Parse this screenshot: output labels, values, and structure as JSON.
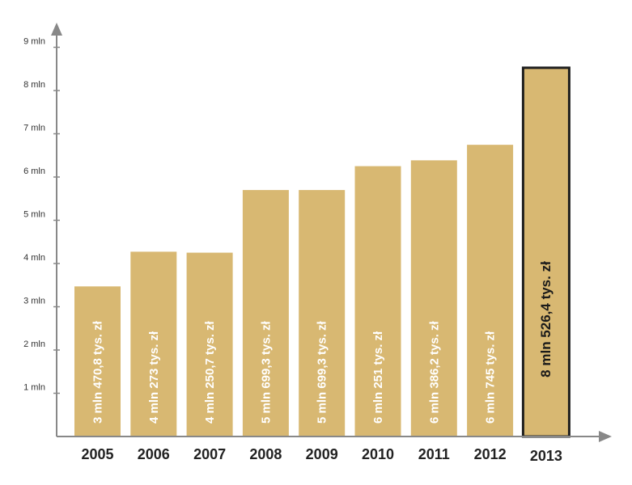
{
  "chart_data": {
    "type": "bar",
    "title": "",
    "xlabel": "",
    "ylabel": "",
    "categories": [
      "2005",
      "2006",
      "2007",
      "2008",
      "2009",
      "2010",
      "2011",
      "2012",
      "2013"
    ],
    "values": [
      3.4708,
      4.273,
      4.2507,
      5.6993,
      5.6993,
      6.251,
      6.3862,
      6.745,
      8.5264
    ],
    "data_labels": [
      "3 mln 470,8 tys. zł",
      "4 mln 273 tys. zł",
      "4 mln 250,7 tys. zł",
      "5 mln 699,3 tys. zł",
      "5 mln 699,3 tys. zł",
      "6 mln 251  tys. zł",
      "6 mln 386,2 tys. zł",
      "6 mln 745 tys. zł",
      "8 mln 526,4 tys. zł"
    ],
    "y_ticks": [
      {
        "value": 1,
        "label": "1 mln"
      },
      {
        "value": 2,
        "label": "2 mln"
      },
      {
        "value": 3,
        "label": "3 mln"
      },
      {
        "value": 4,
        "label": "4 mln"
      },
      {
        "value": 5,
        "label": "5 mln"
      },
      {
        "value": 6,
        "label": "6 mln"
      },
      {
        "value": 7,
        "label": "7 mln"
      },
      {
        "value": 8,
        "label": "8 mln"
      },
      {
        "value": 9,
        "label": "9 mln"
      }
    ],
    "ylim": [
      0,
      9
    ],
    "highlight_index": 8,
    "grid": false,
    "legend": "none",
    "colors": {
      "bar": "#d8b872",
      "highlight_border": "#1e1e1e",
      "axis": "#888888",
      "label_text": "#ffffff",
      "highlight_text": "#1a1a1a"
    }
  }
}
